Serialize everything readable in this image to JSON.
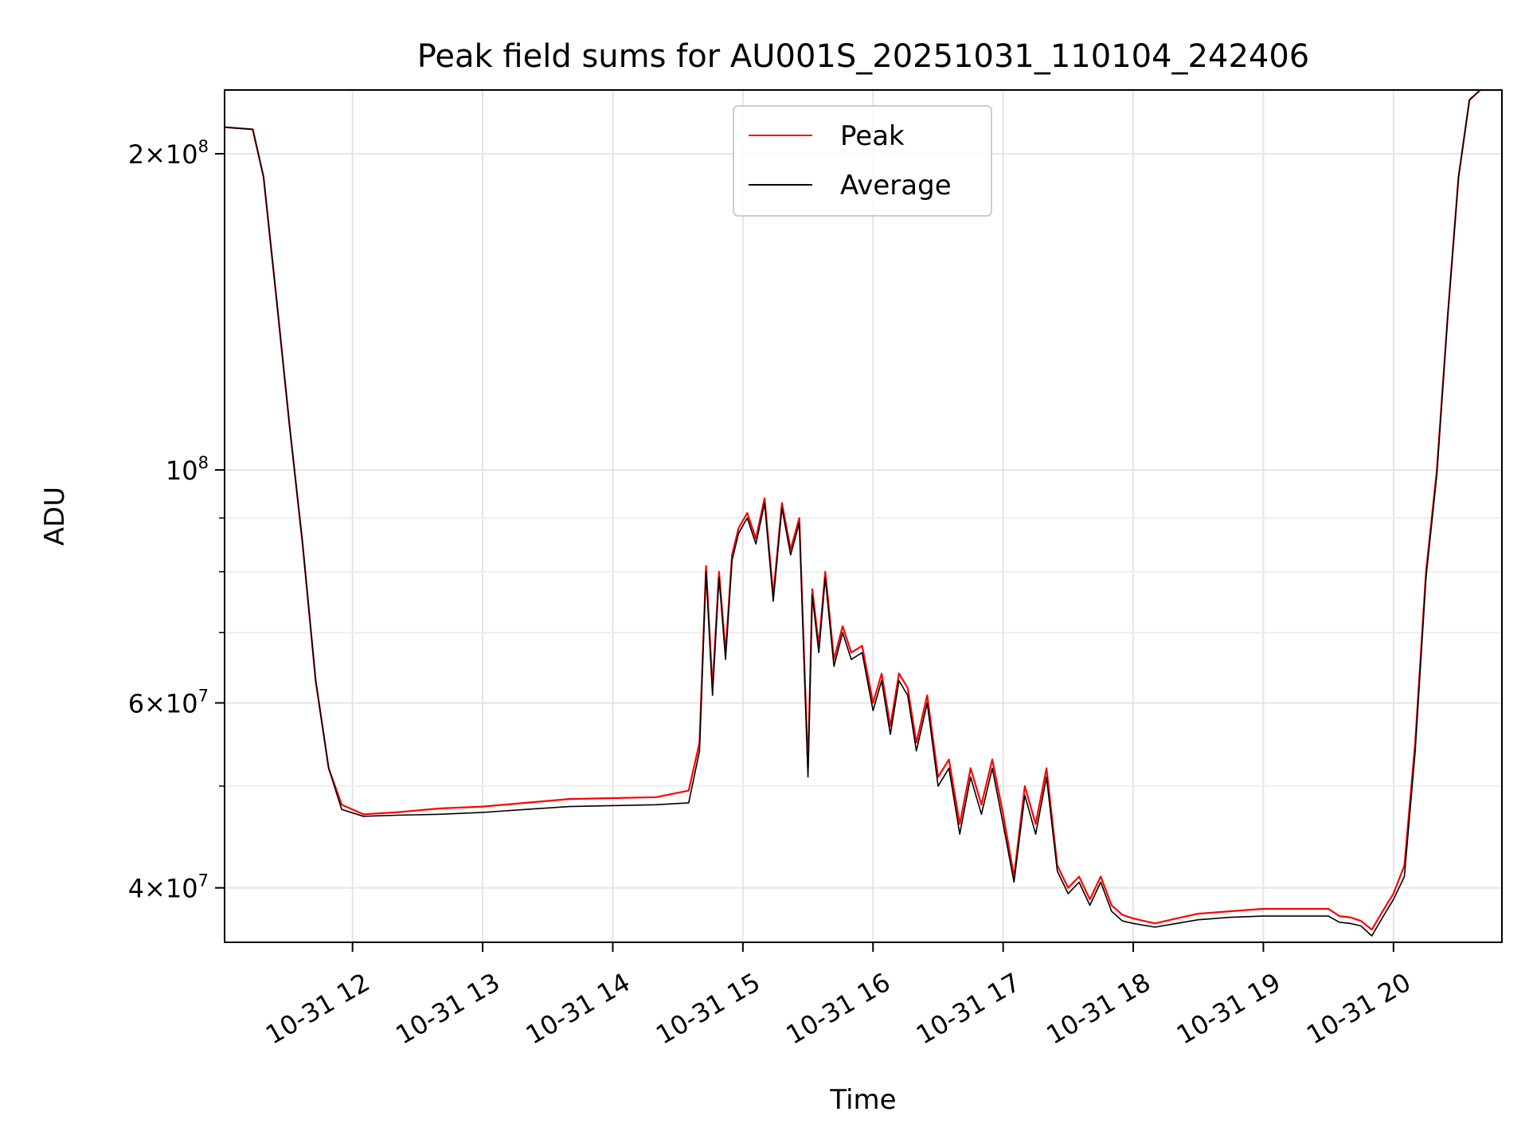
{
  "chart_data": {
    "type": "line",
    "title": "Peak field sums for AU001S_20251031_110104_242406",
    "xlabel": "Time",
    "ylabel": "ADU",
    "yscale": "log",
    "xlim": [
      "2025-10-31 11:01",
      "2025-10-31 20:50"
    ],
    "ylim": [
      35500000,
      230000000
    ],
    "grid": true,
    "legend_position": "top-center",
    "x_ticks": [
      {
        "value": "2025-10-31 12:00",
        "label": "10-31 12"
      },
      {
        "value": "2025-10-31 13:00",
        "label": "10-31 13"
      },
      {
        "value": "2025-10-31 14:00",
        "label": "10-31 14"
      },
      {
        "value": "2025-10-31 15:00",
        "label": "10-31 15"
      },
      {
        "value": "2025-10-31 16:00",
        "label": "10-31 16"
      },
      {
        "value": "2025-10-31 17:00",
        "label": "10-31 17"
      },
      {
        "value": "2025-10-31 18:00",
        "label": "10-31 18"
      },
      {
        "value": "2025-10-31 19:00",
        "label": "10-31 19"
      },
      {
        "value": "2025-10-31 20:00",
        "label": "10-31 20"
      }
    ],
    "y_major_ticks": [
      {
        "value": 40000000,
        "mantissa": "4",
        "base": "10",
        "exp": "7"
      },
      {
        "value": 60000000,
        "mantissa": "6",
        "base": "10",
        "exp": "7"
      },
      {
        "value": 100000000,
        "mantissa": "",
        "base": "10",
        "exp": "8"
      },
      {
        "value": 200000000,
        "mantissa": "2",
        "base": "10",
        "exp": "8"
      }
    ],
    "y_minor_ticks": [
      50000000,
      70000000,
      80000000,
      90000000,
      300000000
    ],
    "series": [
      {
        "name": "Peak",
        "color": "#ff0000",
        "x": [
          "2025-10-31 11:01",
          "2025-10-31 11:14",
          "2025-10-31 11:19",
          "2025-10-31 11:25",
          "2025-10-31 11:31",
          "2025-10-31 11:37",
          "2025-10-31 11:43",
          "2025-10-31 11:49",
          "2025-10-31 11:55",
          "2025-10-31 12:05",
          "2025-10-31 12:20",
          "2025-10-31 12:40",
          "2025-10-31 13:00",
          "2025-10-31 13:20",
          "2025-10-31 13:40",
          "2025-10-31 14:00",
          "2025-10-31 14:20",
          "2025-10-31 14:35",
          "2025-10-31 14:40",
          "2025-10-31 14:43",
          "2025-10-31 14:46",
          "2025-10-31 14:49",
          "2025-10-31 14:52",
          "2025-10-31 14:55",
          "2025-10-31 14:58",
          "2025-10-31 15:02",
          "2025-10-31 15:06",
          "2025-10-31 15:10",
          "2025-10-31 15:14",
          "2025-10-31 15:18",
          "2025-10-31 15:22",
          "2025-10-31 15:26",
          "2025-10-31 15:30",
          "2025-10-31 15:32",
          "2025-10-31 15:35",
          "2025-10-31 15:38",
          "2025-10-31 15:42",
          "2025-10-31 15:46",
          "2025-10-31 15:50",
          "2025-10-31 15:55",
          "2025-10-31 16:00",
          "2025-10-31 16:04",
          "2025-10-31 16:08",
          "2025-10-31 16:12",
          "2025-10-31 16:16",
          "2025-10-31 16:20",
          "2025-10-31 16:25",
          "2025-10-31 16:30",
          "2025-10-31 16:35",
          "2025-10-31 16:40",
          "2025-10-31 16:45",
          "2025-10-31 16:50",
          "2025-10-31 16:55",
          "2025-10-31 17:00",
          "2025-10-31 17:05",
          "2025-10-31 17:10",
          "2025-10-31 17:15",
          "2025-10-31 17:20",
          "2025-10-31 17:25",
          "2025-10-31 17:30",
          "2025-10-31 17:35",
          "2025-10-31 17:40",
          "2025-10-31 17:45",
          "2025-10-31 17:50",
          "2025-10-31 17:55",
          "2025-10-31 18:00",
          "2025-10-31 18:10",
          "2025-10-31 18:20",
          "2025-10-31 18:30",
          "2025-10-31 18:45",
          "2025-10-31 19:00",
          "2025-10-31 19:15",
          "2025-10-31 19:30",
          "2025-10-31 19:35",
          "2025-10-31 19:40",
          "2025-10-31 19:45",
          "2025-10-31 19:50",
          "2025-10-31 19:55",
          "2025-10-31 20:00",
          "2025-10-31 20:05",
          "2025-10-31 20:10",
          "2025-10-31 20:15",
          "2025-10-31 20:20",
          "2025-10-31 20:25",
          "2025-10-31 20:30",
          "2025-10-31 20:35",
          "2025-10-31 20:40",
          "2025-10-31 20:45",
          "2025-10-31 20:50"
        ],
        "y": [
          212000000,
          211000000,
          190000000,
          145000000,
          110000000,
          85000000,
          63000000,
          52000000,
          48000000,
          47000000,
          47200000,
          47600000,
          47800000,
          48200000,
          48600000,
          48700000,
          48800000,
          49500000,
          55000000,
          81000000,
          62000000,
          80000000,
          67000000,
          83000000,
          88000000,
          91000000,
          86000000,
          94000000,
          76000000,
          93000000,
          84000000,
          90000000,
          52000000,
          77000000,
          68000000,
          80000000,
          66000000,
          71000000,
          67000000,
          68000000,
          60000000,
          64000000,
          57000000,
          64000000,
          62000000,
          55000000,
          61000000,
          51000000,
          53000000,
          46000000,
          52000000,
          48000000,
          53000000,
          47000000,
          41000000,
          50000000,
          46000000,
          52000000,
          42000000,
          40000000,
          41000000,
          39000000,
          41000000,
          38500000,
          37700000,
          37400000,
          37000000,
          37400000,
          37800000,
          38000000,
          38200000,
          38200000,
          38200000,
          37600000,
          37500000,
          37200000,
          36500000,
          38000000,
          39500000,
          42000000,
          55000000,
          80000000,
          100000000,
          140000000,
          190000000,
          225000000,
          230000000,
          230000000,
          230000000
        ]
      },
      {
        "name": "Average",
        "color": "#000000",
        "x": [
          "2025-10-31 11:01",
          "2025-10-31 11:14",
          "2025-10-31 11:19",
          "2025-10-31 11:25",
          "2025-10-31 11:31",
          "2025-10-31 11:37",
          "2025-10-31 11:43",
          "2025-10-31 11:49",
          "2025-10-31 11:55",
          "2025-10-31 12:05",
          "2025-10-31 12:20",
          "2025-10-31 12:40",
          "2025-10-31 13:00",
          "2025-10-31 13:20",
          "2025-10-31 13:40",
          "2025-10-31 14:00",
          "2025-10-31 14:20",
          "2025-10-31 14:35",
          "2025-10-31 14:40",
          "2025-10-31 14:43",
          "2025-10-31 14:46",
          "2025-10-31 14:49",
          "2025-10-31 14:52",
          "2025-10-31 14:55",
          "2025-10-31 14:58",
          "2025-10-31 15:02",
          "2025-10-31 15:06",
          "2025-10-31 15:10",
          "2025-10-31 15:14",
          "2025-10-31 15:18",
          "2025-10-31 15:22",
          "2025-10-31 15:26",
          "2025-10-31 15:30",
          "2025-10-31 15:32",
          "2025-10-31 15:35",
          "2025-10-31 15:38",
          "2025-10-31 15:42",
          "2025-10-31 15:46",
          "2025-10-31 15:50",
          "2025-10-31 15:55",
          "2025-10-31 16:00",
          "2025-10-31 16:04",
          "2025-10-31 16:08",
          "2025-10-31 16:12",
          "2025-10-31 16:16",
          "2025-10-31 16:20",
          "2025-10-31 16:25",
          "2025-10-31 16:30",
          "2025-10-31 16:35",
          "2025-10-31 16:40",
          "2025-10-31 16:45",
          "2025-10-31 16:50",
          "2025-10-31 16:55",
          "2025-10-31 17:00",
          "2025-10-31 17:05",
          "2025-10-31 17:10",
          "2025-10-31 17:15",
          "2025-10-31 17:20",
          "2025-10-31 17:25",
          "2025-10-31 17:30",
          "2025-10-31 17:35",
          "2025-10-31 17:40",
          "2025-10-31 17:45",
          "2025-10-31 17:50",
          "2025-10-31 17:55",
          "2025-10-31 18:00",
          "2025-10-31 18:10",
          "2025-10-31 18:20",
          "2025-10-31 18:30",
          "2025-10-31 18:45",
          "2025-10-31 19:00",
          "2025-10-31 19:15",
          "2025-10-31 19:30",
          "2025-10-31 19:35",
          "2025-10-31 19:40",
          "2025-10-31 19:45",
          "2025-10-31 19:50",
          "2025-10-31 19:55",
          "2025-10-31 20:00",
          "2025-10-31 20:05",
          "2025-10-31 20:10",
          "2025-10-31 20:15",
          "2025-10-31 20:20",
          "2025-10-31 20:25",
          "2025-10-31 20:30",
          "2025-10-31 20:35",
          "2025-10-31 20:40",
          "2025-10-31 20:45",
          "2025-10-31 20:50"
        ],
        "y": [
          212000000,
          211000000,
          190000000,
          145000000,
          110000000,
          85000000,
          63000000,
          52000000,
          47500000,
          46800000,
          46900000,
          47000000,
          47200000,
          47500000,
          47800000,
          47900000,
          48000000,
          48200000,
          54000000,
          80000000,
          61000000,
          79000000,
          66000000,
          82000000,
          87000000,
          90000000,
          85000000,
          93000000,
          75000000,
          92000000,
          83000000,
          89000000,
          51000000,
          76000000,
          67000000,
          79000000,
          65000000,
          70000000,
          66000000,
          67000000,
          59000000,
          63000000,
          56000000,
          63000000,
          61000000,
          54000000,
          60000000,
          50000000,
          52000000,
          45000000,
          51000000,
          47000000,
          52000000,
          46000000,
          40500000,
          49000000,
          45000000,
          51000000,
          41500000,
          39500000,
          40500000,
          38500000,
          40500000,
          38000000,
          37200000,
          37000000,
          36700000,
          37000000,
          37300000,
          37500000,
          37600000,
          37600000,
          37600000,
          37100000,
          37000000,
          36800000,
          36000000,
          37500000,
          39000000,
          41000000,
          54000000,
          79000000,
          99000000,
          140000000,
          190000000,
          225000000,
          230000000,
          230000000,
          230000000
        ]
      }
    ]
  }
}
